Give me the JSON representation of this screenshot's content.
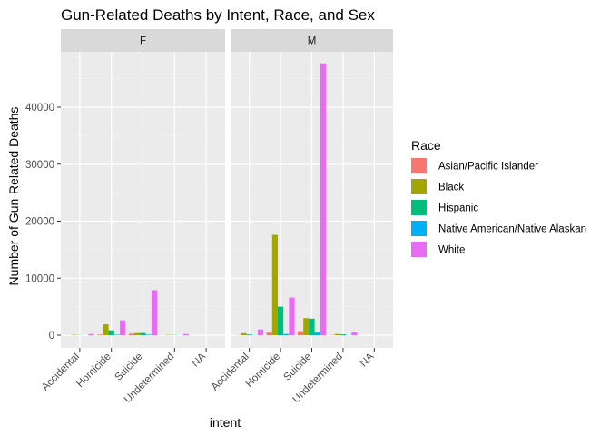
{
  "chart_data": {
    "type": "bar",
    "title": "Gun-Related Deaths by Intent, Race, and Sex",
    "xlabel": "intent",
    "ylabel": "Number of Gun-Related Deaths",
    "facets": [
      "F",
      "M"
    ],
    "categories": [
      "Accidental",
      "Homicide",
      "Suicide",
      "Undetermined",
      "NA"
    ],
    "ylim": [
      0,
      50000
    ],
    "yticks": [
      0,
      10000,
      20000,
      30000,
      40000
    ],
    "grid": true,
    "legend": {
      "title": "Race",
      "placement": "right"
    },
    "series": [
      {
        "name": "Asian/Pacific Islander",
        "color": "#F8766D",
        "values": {
          "F": [
            10,
            110,
            270,
            15,
            0
          ],
          "M": [
            30,
            450,
            710,
            45,
            0
          ]
        }
      },
      {
        "name": "Black",
        "color": "#A3A500",
        "values": {
          "F": [
            60,
            1900,
            380,
            60,
            0
          ],
          "M": [
            330,
            17600,
            3000,
            200,
            0
          ]
        }
      },
      {
        "name": "Hispanic",
        "color": "#00BF7D",
        "values": {
          "F": [
            20,
            850,
            380,
            30,
            0
          ],
          "M": [
            120,
            5000,
            2900,
            150,
            0
          ]
        }
      },
      {
        "name": "Native American/Native Alaskan",
        "color": "#00B0F6",
        "values": {
          "F": [
            5,
            80,
            90,
            5,
            0
          ],
          "M": [
            20,
            200,
            460,
            20,
            0
          ]
        }
      },
      {
        "name": "White",
        "color": "#E76BF3",
        "values": {
          "F": [
            200,
            2600,
            7900,
            200,
            0
          ],
          "M": [
            1000,
            6600,
            47700,
            500,
            0
          ]
        }
      }
    ]
  }
}
